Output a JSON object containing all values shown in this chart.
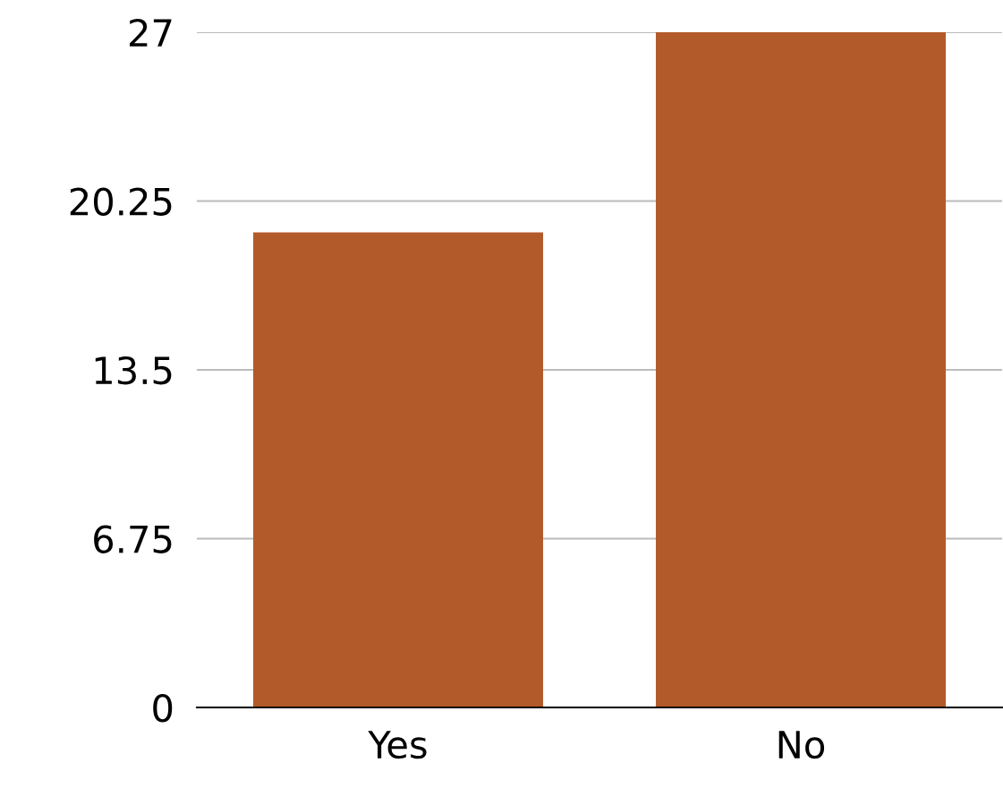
{
  "chart_data": {
    "type": "bar",
    "categories": [
      "Yes",
      "No"
    ],
    "values": [
      19,
      27
    ],
    "color": "#b35a2a",
    "ylim": [
      0,
      27
    ],
    "yticks": [
      0,
      6.75,
      13.5,
      20.25,
      27
    ],
    "grid": "y"
  }
}
